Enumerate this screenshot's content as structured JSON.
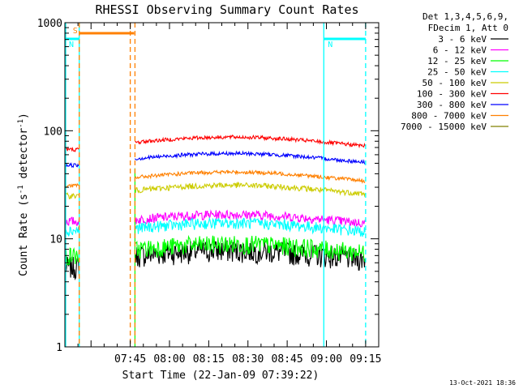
{
  "chart_data": {
    "type": "line",
    "title": "RHESSI Observing Summary Count Rates",
    "xlabel": "Start Time (22-Jan-09 07:39:22)",
    "ylabel": "Count Rate (s⁻¹ detector⁻¹)",
    "ylabel_parts": [
      "Count Rate (s",
      "-1",
      " detector",
      "-1",
      ")"
    ],
    "yscale": "log",
    "ylim": [
      1,
      1000
    ],
    "xlim_minutes": [
      440,
      560
    ],
    "yticks": [
      {
        "label": "1",
        "value": 1
      },
      {
        "label": "10",
        "value": 10
      },
      {
        "label": "100",
        "value": 100
      },
      {
        "label": "1000",
        "value": 1000
      }
    ],
    "xticks": [
      {
        "label": "07:45",
        "minute": 465
      },
      {
        "label": "08:00",
        "minute": 480
      },
      {
        "label": "08:15",
        "minute": 495
      },
      {
        "label": "08:30",
        "minute": 510
      },
      {
        "label": "08:45",
        "minute": 525
      },
      {
        "label": "09:00",
        "minute": 540
      },
      {
        "label": "09:15",
        "minute": 555
      }
    ],
    "legend": {
      "position": "right",
      "header": [
        "Det 1,3,4,5,6,9,",
        "FDecim 1, Att 0"
      ]
    },
    "series": [
      {
        "name": "3 - 6 keV",
        "color": "#000000",
        "level_before": 5.5,
        "level_after": 7,
        "noise": 0.12
      },
      {
        "name": "6 - 12 keV",
        "color": "#ff00ff",
        "level_before": 14.5,
        "level_after": 15,
        "noise": 0.05
      },
      {
        "name": "12 - 25 keV",
        "color": "#00ff00",
        "level_before": 7,
        "level_after": 8,
        "noise": 0.1
      },
      {
        "name": "25 - 50 keV",
        "color": "#00ffff",
        "level_before": 12,
        "level_after": 12.5,
        "noise": 0.06
      },
      {
        "name": "50 - 100 keV",
        "color": "#cccc00",
        "level_before": 25,
        "level_after": 28,
        "noise": 0.03
      },
      {
        "name": "100 - 300 keV",
        "color": "#ff0000",
        "level_before": 67,
        "level_after": 78,
        "noise": 0.02
      },
      {
        "name": "300 - 800 keV",
        "color": "#0000ff",
        "level_before": 48,
        "level_after": 55,
        "noise": 0.02
      },
      {
        "name": "800 - 7000 keV",
        "color": "#ff8000",
        "level_before": 31,
        "level_after": 37,
        "noise": 0.02
      },
      {
        "name": "7000 - 15000 keV",
        "color": "#808000",
        "level_before": 0,
        "level_after": 0,
        "noise": 0
      }
    ],
    "data_gap_minutes": [
      445.5,
      466.5
    ],
    "intervals": [
      {
        "label": "N",
        "color": "#00ffff",
        "kind": "night",
        "start": 440,
        "end": 445.5
      },
      {
        "label": "S",
        "color": "#ff8000",
        "kind": "saa",
        "start": 445.5,
        "end": 466.5
      },
      {
        "label": "N",
        "color": "#00ffff",
        "kind": "night",
        "start": 539,
        "end": 555
      }
    ],
    "vlines": [
      {
        "minute": 440.3,
        "color": "#00ffff",
        "style": "solid"
      },
      {
        "minute": 445.5,
        "color": "#00ffff",
        "style": "solid"
      },
      {
        "minute": 445.5,
        "color": "#ff8000",
        "style": "dashed"
      },
      {
        "minute": 465.0,
        "color": "#ff8000",
        "style": "dashed"
      },
      {
        "minute": 466.8,
        "color": "#ff8000",
        "style": "dashed"
      },
      {
        "minute": 539.0,
        "color": "#00ffff",
        "style": "solid"
      },
      {
        "minute": 555.0,
        "color": "#00ffff",
        "style": "dashed"
      }
    ],
    "grid": false
  },
  "footer": {
    "timestamp": "13-Oct-2021 18:36"
  }
}
